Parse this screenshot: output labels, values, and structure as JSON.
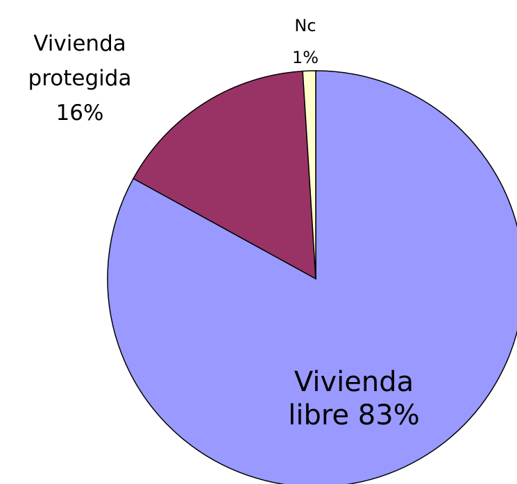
{
  "chart_data": {
    "type": "pie",
    "categories": [
      "Vivienda libre",
      "Vivienda protegida",
      "Nc"
    ],
    "values": [
      83,
      16,
      1
    ],
    "value_labels": [
      "83%",
      "16%",
      "1%"
    ],
    "colors": [
      "#9999ff",
      "#993366",
      "#ffffcc"
    ]
  }
}
